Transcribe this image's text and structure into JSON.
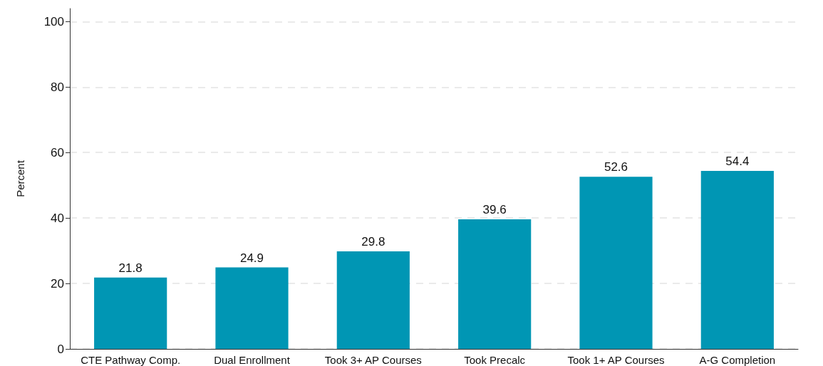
{
  "chart_data": {
    "type": "bar",
    "ylabel": "Percent",
    "categories": [
      "CTE Pathway Comp.",
      "Dual Enrollment",
      "Took 3+ AP Courses",
      "Took Precalc",
      "Took 1+ AP Courses",
      "A-G Completion"
    ],
    "values": [
      21.8,
      24.9,
      29.8,
      39.6,
      52.6,
      54.4
    ],
    "color": "#0096b4",
    "ylim": [
      0,
      104
    ],
    "yticks": [
      0,
      20,
      40,
      60,
      80,
      100
    ],
    "grid": "y",
    "data_labels": true
  }
}
